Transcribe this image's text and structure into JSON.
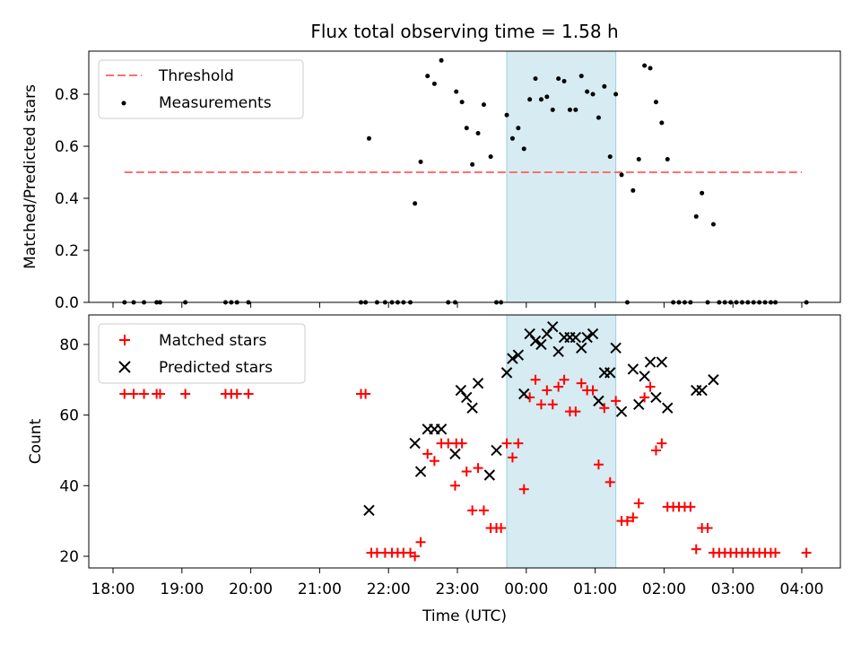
{
  "chart_data": [
    {
      "type": "scatter",
      "title": "Flux total observing time = 1.58 h",
      "xlabel": "",
      "ylabel": "Matched/Predicted stars",
      "ylim": [
        0,
        0.97
      ],
      "yticks": [
        "0.0",
        "0.2",
        "0.4",
        "0.6",
        "0.8"
      ],
      "grid": false,
      "legend_placement": "upper-left",
      "highlight_span": {
        "start": "23:43",
        "end": "01:18",
        "color": "#add8e6"
      },
      "threshold": {
        "name": "Threshold",
        "value": 0.5,
        "start": "18:10",
        "end": "04:00",
        "color": "#ff6f6f"
      },
      "series": [
        {
          "name": "Measurements",
          "color": "#000000",
          "points": [
            [
              "18:10",
              0
            ],
            [
              "18:18",
              0
            ],
            [
              "18:27",
              0
            ],
            [
              "18:38",
              0
            ],
            [
              "18:41",
              0
            ],
            [
              "19:03",
              0
            ],
            [
              "19:38",
              0
            ],
            [
              "19:43",
              0
            ],
            [
              "19:48",
              0
            ],
            [
              "19:58",
              0
            ],
            [
              "21:36",
              0
            ],
            [
              "21:40",
              0
            ],
            [
              "21:43",
              0.63
            ],
            [
              "21:50",
              0
            ],
            [
              "21:57",
              0
            ],
            [
              "22:03",
              0
            ],
            [
              "22:08",
              0
            ],
            [
              "22:13",
              0
            ],
            [
              "22:19",
              0
            ],
            [
              "22:23",
              0.38
            ],
            [
              "22:28",
              0.54
            ],
            [
              "22:34",
              0.87
            ],
            [
              "22:40",
              0.84
            ],
            [
              "22:46",
              0.93
            ],
            [
              "22:52",
              0
            ],
            [
              "22:58",
              0
            ],
            [
              "22:59",
              0.81
            ],
            [
              "23:04",
              0.77
            ],
            [
              "23:08",
              0.67
            ],
            [
              "23:13",
              0.53
            ],
            [
              "23:18",
              0.65
            ],
            [
              "23:23",
              0.76
            ],
            [
              "23:29",
              0.56
            ],
            [
              "23:34",
              0
            ],
            [
              "23:38",
              0
            ],
            [
              "23:43",
              0.72
            ],
            [
              "23:48",
              0.63
            ],
            [
              "23:53",
              0.67
            ],
            [
              "23:58",
              0.59
            ],
            [
              "00:03",
              0.78
            ],
            [
              "00:08",
              0.86
            ],
            [
              "00:13",
              0.78
            ],
            [
              "00:18",
              0.79
            ],
            [
              "00:23",
              0.74
            ],
            [
              "00:28",
              0.86
            ],
            [
              "00:33",
              0.85
            ],
            [
              "00:38",
              0.74
            ],
            [
              "00:43",
              0.74
            ],
            [
              "00:48",
              0.87
            ],
            [
              "00:53",
              0.81
            ],
            [
              "00:58",
              0.8
            ],
            [
              "01:03",
              0.71
            ],
            [
              "01:08",
              0.83
            ],
            [
              "01:13",
              0.56
            ],
            [
              "01:18",
              0.8
            ],
            [
              "01:23",
              0.49
            ],
            [
              "01:28",
              0
            ],
            [
              "01:33",
              0.43
            ],
            [
              "01:38",
              0.55
            ],
            [
              "01:43",
              0.91
            ],
            [
              "01:48",
              0.9
            ],
            [
              "01:53",
              0.77
            ],
            [
              "01:58",
              0.69
            ],
            [
              "02:03",
              0.55
            ],
            [
              "02:08",
              0
            ],
            [
              "02:13",
              0
            ],
            [
              "02:18",
              0
            ],
            [
              "02:23",
              0
            ],
            [
              "02:28",
              0.33
            ],
            [
              "02:33",
              0.42
            ],
            [
              "02:38",
              0
            ],
            [
              "02:43",
              0.3
            ],
            [
              "02:48",
              0
            ],
            [
              "02:53",
              0
            ],
            [
              "02:58",
              0
            ],
            [
              "03:03",
              0
            ],
            [
              "03:08",
              0
            ],
            [
              "03:13",
              0
            ],
            [
              "03:18",
              0
            ],
            [
              "03:23",
              0
            ],
            [
              "03:28",
              0
            ],
            [
              "03:33",
              0
            ],
            [
              "03:37",
              0
            ],
            [
              "04:04",
              0
            ]
          ]
        }
      ]
    },
    {
      "type": "scatter",
      "title": "",
      "xlabel": "Time (UTC)",
      "ylabel": "Count",
      "ylim": [
        16.5,
        89
      ],
      "yticks": [
        "20",
        "40",
        "60",
        "80"
      ],
      "xticks": [
        "18:00",
        "19:00",
        "20:00",
        "21:00",
        "22:00",
        "23:00",
        "00:00",
        "01:00",
        "02:00",
        "03:00",
        "04:00"
      ],
      "grid": false,
      "legend_placement": "upper-left",
      "highlight_span": {
        "start": "23:43",
        "end": "01:18",
        "color": "#add8e6"
      },
      "series": [
        {
          "name": "Matched stars",
          "color": "#ff0000",
          "marker": "plus",
          "points": [
            [
              "18:10",
              66
            ],
            [
              "18:18",
              66
            ],
            [
              "18:27",
              66
            ],
            [
              "18:38",
              66
            ],
            [
              "18:41",
              66
            ],
            [
              "19:03",
              66
            ],
            [
              "19:38",
              66
            ],
            [
              "19:43",
              66
            ],
            [
              "19:48",
              66
            ],
            [
              "19:58",
              66
            ],
            [
              "21:36",
              66
            ],
            [
              "21:40",
              66
            ],
            [
              "21:45",
              21
            ],
            [
              "21:50",
              21
            ],
            [
              "21:57",
              21
            ],
            [
              "22:03",
              21
            ],
            [
              "22:08",
              21
            ],
            [
              "22:13",
              21
            ],
            [
              "22:19",
              21
            ],
            [
              "22:23",
              20
            ],
            [
              "22:28",
              24
            ],
            [
              "22:34",
              49
            ],
            [
              "22:40",
              47
            ],
            [
              "22:46",
              52
            ],
            [
              "22:52",
              52
            ],
            [
              "22:58",
              40
            ],
            [
              "22:59",
              52
            ],
            [
              "23:04",
              52
            ],
            [
              "23:08",
              44
            ],
            [
              "23:13",
              33
            ],
            [
              "23:18",
              45
            ],
            [
              "23:23",
              33
            ],
            [
              "23:29",
              28
            ],
            [
              "23:34",
              28
            ],
            [
              "23:38",
              28
            ],
            [
              "23:43",
              52
            ],
            [
              "23:48",
              48
            ],
            [
              "23:53",
              52
            ],
            [
              "23:58",
              39
            ],
            [
              "00:03",
              65
            ],
            [
              "00:08",
              70
            ],
            [
              "00:13",
              63
            ],
            [
              "00:18",
              67
            ],
            [
              "00:23",
              63
            ],
            [
              "00:28",
              68
            ],
            [
              "00:33",
              70
            ],
            [
              "00:38",
              61
            ],
            [
              "00:43",
              61
            ],
            [
              "00:48",
              69
            ],
            [
              "00:53",
              67
            ],
            [
              "00:58",
              67
            ],
            [
              "01:03",
              46
            ],
            [
              "01:08",
              62
            ],
            [
              "01:13",
              41
            ],
            [
              "01:18",
              64
            ],
            [
              "01:23",
              30
            ],
            [
              "01:28",
              30
            ],
            [
              "01:33",
              31
            ],
            [
              "01:38",
              35
            ],
            [
              "01:43",
              65
            ],
            [
              "01:48",
              68
            ],
            [
              "01:53",
              50
            ],
            [
              "01:58",
              52
            ],
            [
              "02:03",
              34
            ],
            [
              "02:08",
              34
            ],
            [
              "02:13",
              34
            ],
            [
              "02:18",
              34
            ],
            [
              "02:23",
              34
            ],
            [
              "02:28",
              22
            ],
            [
              "02:33",
              28
            ],
            [
              "02:38",
              28
            ],
            [
              "02:43",
              21
            ],
            [
              "02:48",
              21
            ],
            [
              "02:53",
              21
            ],
            [
              "02:58",
              21
            ],
            [
              "03:03",
              21
            ],
            [
              "03:08",
              21
            ],
            [
              "03:13",
              21
            ],
            [
              "03:18",
              21
            ],
            [
              "03:23",
              21
            ],
            [
              "03:28",
              21
            ],
            [
              "03:33",
              21
            ],
            [
              "03:37",
              21
            ],
            [
              "04:04",
              21
            ]
          ]
        },
        {
          "name": "Predicted stars",
          "color": "#000000",
          "marker": "x",
          "points": [
            [
              "21:43",
              33
            ],
            [
              "22:23",
              52
            ],
            [
              "22:28",
              44
            ],
            [
              "22:34",
              56
            ],
            [
              "22:40",
              56
            ],
            [
              "22:46",
              56
            ],
            [
              "22:58",
              49
            ],
            [
              "23:03",
              67
            ],
            [
              "23:08",
              65
            ],
            [
              "23:13",
              62
            ],
            [
              "23:18",
              69
            ],
            [
              "23:28",
              43
            ],
            [
              "23:34",
              50
            ],
            [
              "23:43",
              72
            ],
            [
              "23:48",
              76
            ],
            [
              "23:53",
              77
            ],
            [
              "23:58",
              66
            ],
            [
              "00:03",
              83
            ],
            [
              "00:08",
              81
            ],
            [
              "00:13",
              80
            ],
            [
              "00:18",
              83
            ],
            [
              "00:23",
              85
            ],
            [
              "00:28",
              78
            ],
            [
              "00:33",
              82
            ],
            [
              "00:38",
              82
            ],
            [
              "00:43",
              82
            ],
            [
              "00:48",
              79
            ],
            [
              "00:53",
              82
            ],
            [
              "00:58",
              83
            ],
            [
              "01:03",
              64
            ],
            [
              "01:08",
              72
            ],
            [
              "01:13",
              72
            ],
            [
              "01:18",
              79
            ],
            [
              "01:23",
              61
            ],
            [
              "01:33",
              73
            ],
            [
              "01:38",
              63
            ],
            [
              "01:43",
              71
            ],
            [
              "01:48",
              75
            ],
            [
              "01:53",
              65
            ],
            [
              "01:58",
              75
            ],
            [
              "02:03",
              62
            ],
            [
              "02:28",
              67
            ],
            [
              "02:33",
              67
            ],
            [
              "02:43",
              70
            ]
          ]
        }
      ]
    }
  ]
}
